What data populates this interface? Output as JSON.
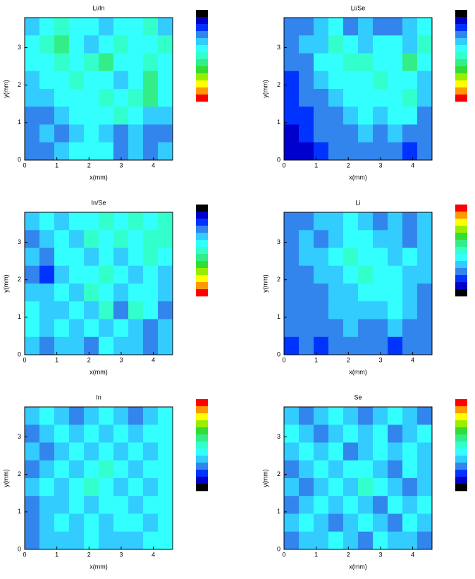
{
  "chart_data": [
    {
      "type": "contour",
      "title": "Li/In",
      "x_label": "x(mm)",
      "y_label": "y(mm)",
      "xlim": [
        0,
        4.6
      ],
      "ylim": [
        0,
        3.8
      ],
      "xticks": [
        0,
        1,
        2,
        3,
        4
      ],
      "yticks": [
        0,
        1,
        2,
        3
      ],
      "colorbar_top": "low",
      "colors": [
        "#000000",
        "#0000cc",
        "#0033ff",
        "#3385ee",
        "#33ccff",
        "#33ffff",
        "#33ffcc",
        "#33ee88",
        "#33dd33",
        "#99ee00",
        "#ffff00",
        "#ff9900",
        "#ff0000"
      ],
      "z": [
        [
          4,
          5,
          6,
          5,
          5,
          4,
          5,
          5,
          6,
          4
        ],
        [
          5,
          6,
          7,
          5,
          4,
          5,
          6,
          5,
          5,
          6
        ],
        [
          5,
          5,
          6,
          5,
          6,
          7,
          5,
          5,
          6,
          5
        ],
        [
          4,
          5,
          5,
          6,
          5,
          5,
          4,
          5,
          7,
          5
        ],
        [
          4,
          4,
          5,
          5,
          5,
          6,
          5,
          6,
          7,
          5
        ],
        [
          3,
          3,
          4,
          5,
          5,
          5,
          6,
          5,
          4,
          4
        ],
        [
          3,
          4,
          3,
          4,
          5,
          4,
          3,
          4,
          3,
          3
        ],
        [
          3,
          3,
          4,
          5,
          5,
          5,
          3,
          4,
          3,
          4
        ]
      ]
    },
    {
      "type": "contour",
      "title": "Li/Se",
      "x_label": "x(mm)",
      "y_label": "y(mm)",
      "xlim": [
        0,
        4.6
      ],
      "ylim": [
        0,
        3.8
      ],
      "xticks": [
        0,
        1,
        2,
        3,
        4
      ],
      "yticks": [
        0,
        1,
        2,
        3
      ],
      "colorbar_top": "low",
      "colors": [
        "#000000",
        "#0000cc",
        "#0033ff",
        "#3385ee",
        "#33ccff",
        "#33ffff",
        "#33ffcc",
        "#33ee88",
        "#33dd33",
        "#99ee00",
        "#ffff00",
        "#ff9900",
        "#ff0000"
      ],
      "z": [
        [
          3,
          3,
          4,
          5,
          3,
          4,
          3,
          3,
          4,
          5
        ],
        [
          3,
          4,
          4,
          6,
          5,
          4,
          5,
          5,
          4,
          6
        ],
        [
          3,
          3,
          5,
          5,
          6,
          6,
          5,
          5,
          7,
          5
        ],
        [
          2,
          3,
          4,
          5,
          5,
          5,
          6,
          5,
          5,
          4
        ],
        [
          2,
          3,
          3,
          4,
          5,
          5,
          5,
          5,
          6,
          4
        ],
        [
          2,
          2,
          3,
          3,
          4,
          5,
          4,
          5,
          5,
          3
        ],
        [
          1,
          2,
          3,
          3,
          3,
          4,
          3,
          4,
          3,
          3
        ],
        [
          1,
          1,
          2,
          3,
          3,
          3,
          3,
          3,
          2,
          3
        ]
      ]
    },
    {
      "type": "contour",
      "title": "In/Se",
      "x_label": "x(mm)",
      "y_label": "y(mm)",
      "xlim": [
        0,
        4.6
      ],
      "ylim": [
        0,
        3.8
      ],
      "xticks": [
        0,
        1,
        2,
        3,
        4
      ],
      "yticks": [
        0,
        1,
        2,
        3
      ],
      "colorbar_top": "low",
      "colors": [
        "#000000",
        "#0000cc",
        "#0033ff",
        "#3385ee",
        "#33ccff",
        "#33ffff",
        "#33ffcc",
        "#33ee88",
        "#33dd33",
        "#99ee00",
        "#ffff00",
        "#ff9900",
        "#ff0000"
      ],
      "z": [
        [
          4,
          5,
          4,
          5,
          5,
          6,
          5,
          6,
          5,
          6
        ],
        [
          3,
          4,
          5,
          4,
          6,
          5,
          6,
          5,
          6,
          6
        ],
        [
          4,
          3,
          5,
          5,
          4,
          5,
          4,
          5,
          6,
          5
        ],
        [
          3,
          2,
          4,
          5,
          5,
          6,
          5,
          4,
          5,
          4
        ],
        [
          4,
          4,
          5,
          4,
          6,
          5,
          4,
          5,
          5,
          4
        ],
        [
          5,
          4,
          4,
          5,
          4,
          6,
          3,
          6,
          5,
          3
        ],
        [
          5,
          4,
          5,
          4,
          5,
          4,
          5,
          4,
          3,
          4
        ],
        [
          4,
          3,
          4,
          4,
          3,
          5,
          4,
          4,
          3,
          4
        ]
      ]
    },
    {
      "type": "contour",
      "title": "Li",
      "x_label": "x(mm)",
      "y_label": "y(mm)",
      "xlim": [
        0,
        4.6
      ],
      "ylim": [
        0,
        3.8
      ],
      "xticks": [
        0,
        1,
        2,
        3,
        4
      ],
      "yticks": [
        0,
        1,
        2,
        3
      ],
      "colorbar_top": "high",
      "colors": [
        "#000000",
        "#0000cc",
        "#0033ff",
        "#3385ee",
        "#33ccff",
        "#33ffff",
        "#33ffcc",
        "#33ee88",
        "#33dd33",
        "#99ee00",
        "#ffff00",
        "#ff9900",
        "#ff0000"
      ],
      "z": [
        [
          3,
          3,
          4,
          4,
          5,
          4,
          3,
          4,
          3,
          4
        ],
        [
          3,
          4,
          3,
          4,
          5,
          5,
          4,
          4,
          3,
          4
        ],
        [
          3,
          4,
          4,
          5,
          6,
          5,
          5,
          4,
          5,
          4
        ],
        [
          3,
          3,
          4,
          4,
          5,
          6,
          5,
          5,
          4,
          4
        ],
        [
          3,
          3,
          3,
          4,
          4,
          5,
          5,
          5,
          4,
          3
        ],
        [
          3,
          3,
          3,
          4,
          4,
          4,
          4,
          5,
          4,
          3
        ],
        [
          3,
          3,
          3,
          3,
          4,
          3,
          3,
          4,
          3,
          3
        ],
        [
          2,
          3,
          2,
          3,
          3,
          3,
          3,
          2,
          3,
          3
        ]
      ]
    },
    {
      "type": "contour",
      "title": "In",
      "x_label": "x(mm)",
      "y_label": "y(mm)",
      "xlim": [
        0,
        4.6
      ],
      "ylim": [
        0,
        3.8
      ],
      "xticks": [
        0,
        1,
        2,
        3,
        4
      ],
      "yticks": [
        0,
        1,
        2,
        3
      ],
      "colorbar_top": "high",
      "colors": [
        "#000000",
        "#0000cc",
        "#0033ff",
        "#3385ee",
        "#33ccff",
        "#33ffff",
        "#33ffcc",
        "#33ee88",
        "#33dd33",
        "#99ee00",
        "#ffff00",
        "#ff9900",
        "#ff0000"
      ],
      "z": [
        [
          4,
          5,
          4,
          3,
          4,
          5,
          4,
          3,
          4,
          5
        ],
        [
          3,
          4,
          5,
          4,
          5,
          4,
          5,
          4,
          5,
          5
        ],
        [
          4,
          3,
          4,
          5,
          4,
          5,
          4,
          5,
          4,
          5
        ],
        [
          3,
          4,
          5,
          4,
          5,
          6,
          5,
          4,
          5,
          5
        ],
        [
          4,
          5,
          4,
          5,
          6,
          5,
          4,
          5,
          4,
          5
        ],
        [
          3,
          4,
          4,
          5,
          4,
          5,
          5,
          4,
          5,
          5
        ],
        [
          3,
          4,
          5,
          4,
          5,
          4,
          5,
          5,
          4,
          5
        ],
        [
          3,
          4,
          4,
          4,
          5,
          4,
          4,
          4,
          5,
          5
        ]
      ]
    },
    {
      "type": "contour",
      "title": "Se",
      "x_label": "x(mm)",
      "y_label": "y(mm)",
      "xlim": [
        0,
        4.6
      ],
      "ylim": [
        0,
        3.8
      ],
      "xticks": [
        0,
        1,
        2,
        3,
        4
      ],
      "yticks": [
        0,
        1,
        2,
        3
      ],
      "colorbar_top": "high",
      "colors": [
        "#000000",
        "#0000cc",
        "#0033ff",
        "#3385ee",
        "#33ccff",
        "#33ffff",
        "#33ffcc",
        "#33ee88",
        "#33dd33",
        "#99ee00",
        "#ffff00",
        "#ff9900",
        "#ff0000"
      ],
      "z": [
        [
          4,
          3,
          4,
          5,
          4,
          3,
          4,
          5,
          4,
          3
        ],
        [
          5,
          4,
          3,
          4,
          5,
          4,
          5,
          3,
          4,
          5
        ],
        [
          4,
          5,
          4,
          5,
          3,
          4,
          5,
          4,
          5,
          4
        ],
        [
          3,
          4,
          5,
          4,
          5,
          5,
          4,
          3,
          5,
          4
        ],
        [
          4,
          3,
          4,
          5,
          4,
          6,
          5,
          4,
          3,
          4
        ],
        [
          3,
          4,
          5,
          4,
          5,
          4,
          3,
          5,
          4,
          5
        ],
        [
          4,
          5,
          4,
          3,
          4,
          5,
          4,
          3,
          5,
          4
        ],
        [
          3,
          4,
          4,
          5,
          4,
          3,
          5,
          4,
          4,
          3
        ]
      ]
    }
  ]
}
